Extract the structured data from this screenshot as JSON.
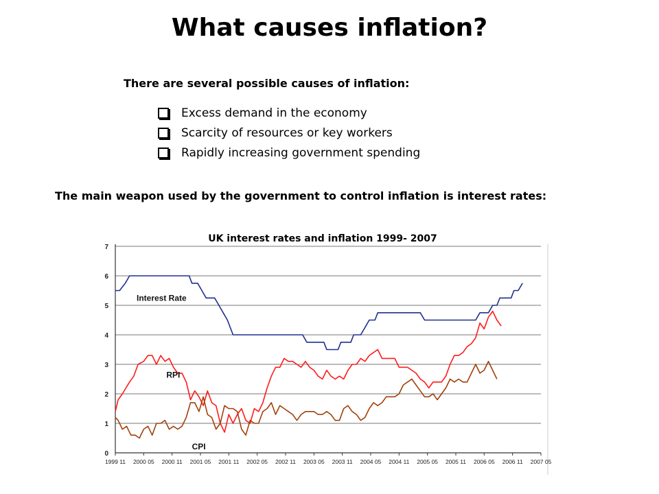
{
  "slide": {
    "title": "What causes inflation?",
    "intro": "There are several possible causes of inflation:",
    "bullets": [
      "Excess demand in the economy",
      "Scarcity of resources or key workers",
      "Rapidly increasing government spending"
    ],
    "weapon_text": "The main weapon used by the government to control inflation is interest rates:"
  },
  "chart_data": {
    "type": "line",
    "title": "UK interest rates and inflation 1999- 2007",
    "ylim": [
      0,
      7
    ],
    "yticks": [
      "0",
      "1",
      "2",
      "3",
      "4",
      "5",
      "6",
      "7"
    ],
    "xticks": [
      "1999 11",
      "2000 05",
      "2000 11",
      "2001 05",
      "2001 11",
      "2002 05",
      "2002 11",
      "2003 05",
      "2003 11",
      "2004 05",
      "2004 11",
      "2005 05",
      "2005 11",
      "2006 05",
      "2006 11",
      "2007 05"
    ],
    "grid": true,
    "colors": {
      "Interest Rate": "#1f2f8f",
      "RPI": "#ff1a1a",
      "CPI": "#a0400a"
    },
    "series": [
      {
        "name": "Interest Rate",
        "points": [
          [
            0,
            5.5
          ],
          [
            0.15,
            5.5
          ],
          [
            0.35,
            5.75
          ],
          [
            0.5,
            6
          ],
          [
            1,
            6
          ],
          [
            2,
            6
          ],
          [
            2.6,
            6
          ],
          [
            2.7,
            5.75
          ],
          [
            2.9,
            5.75
          ],
          [
            3.05,
            5.5
          ],
          [
            3.2,
            5.25
          ],
          [
            3.5,
            5.25
          ],
          [
            3.65,
            5
          ],
          [
            3.8,
            4.75
          ],
          [
            3.95,
            4.5
          ],
          [
            4.05,
            4.25
          ],
          [
            4.15,
            4
          ],
          [
            5,
            4
          ],
          [
            6,
            4
          ],
          [
            6.6,
            4
          ],
          [
            6.75,
            3.75
          ],
          [
            7.05,
            3.75
          ],
          [
            7.35,
            3.75
          ],
          [
            7.45,
            3.5
          ],
          [
            7.85,
            3.5
          ],
          [
            7.95,
            3.75
          ],
          [
            8.3,
            3.75
          ],
          [
            8.4,
            4
          ],
          [
            8.65,
            4
          ],
          [
            8.8,
            4.25
          ],
          [
            8.95,
            4.5
          ],
          [
            9.15,
            4.5
          ],
          [
            9.25,
            4.75
          ],
          [
            10,
            4.75
          ],
          [
            10.75,
            4.75
          ],
          [
            10.9,
            4.5
          ],
          [
            11.5,
            4.5
          ],
          [
            12.5,
            4.5
          ],
          [
            12.7,
            4.5
          ],
          [
            12.85,
            4.75
          ],
          [
            13.15,
            4.75
          ],
          [
            13.3,
            5
          ],
          [
            13.45,
            5
          ],
          [
            13.55,
            5.25
          ],
          [
            13.95,
            5.25
          ],
          [
            14.05,
            5.5
          ],
          [
            14.2,
            5.5
          ],
          [
            14.35,
            5.75
          ]
        ]
      },
      {
        "name": "RPI",
        "points": [
          [
            0,
            1.4
          ],
          [
            0.1,
            1.8
          ],
          [
            0.25,
            2.0
          ],
          [
            0.5,
            2.4
          ],
          [
            0.65,
            2.6
          ],
          [
            0.8,
            3.0
          ],
          [
            1,
            3.1
          ],
          [
            1.15,
            3.3
          ],
          [
            1.3,
            3.3
          ],
          [
            1.45,
            3.0
          ],
          [
            1.6,
            3.3
          ],
          [
            1.75,
            3.1
          ],
          [
            1.9,
            3.2
          ],
          [
            2.05,
            2.9
          ],
          [
            2.2,
            2.7
          ],
          [
            2.35,
            2.7
          ],
          [
            2.5,
            2.4
          ],
          [
            2.65,
            1.8
          ],
          [
            2.8,
            2.1
          ],
          [
            2.95,
            1.9
          ],
          [
            3.1,
            1.6
          ],
          [
            3.25,
            2.1
          ],
          [
            3.4,
            1.7
          ],
          [
            3.55,
            1.6
          ],
          [
            3.7,
            1.0
          ],
          [
            3.85,
            0.7
          ],
          [
            4.0,
            1.3
          ],
          [
            4.15,
            1.0
          ],
          [
            4.3,
            1.3
          ],
          [
            4.45,
            1.5
          ],
          [
            4.6,
            1.1
          ],
          [
            4.75,
            1.0
          ],
          [
            4.9,
            1.5
          ],
          [
            5.05,
            1.4
          ],
          [
            5.2,
            1.7
          ],
          [
            5.35,
            2.2
          ],
          [
            5.5,
            2.6
          ],
          [
            5.65,
            2.9
          ],
          [
            5.8,
            2.9
          ],
          [
            5.95,
            3.2
          ],
          [
            6.1,
            3.1
          ],
          [
            6.25,
            3.1
          ],
          [
            6.4,
            3.0
          ],
          [
            6.55,
            2.9
          ],
          [
            6.7,
            3.1
          ],
          [
            6.85,
            2.9
          ],
          [
            7.0,
            2.8
          ],
          [
            7.15,
            2.6
          ],
          [
            7.3,
            2.5
          ],
          [
            7.45,
            2.8
          ],
          [
            7.6,
            2.6
          ],
          [
            7.75,
            2.5
          ],
          [
            7.9,
            2.6
          ],
          [
            8.05,
            2.5
          ],
          [
            8.2,
            2.8
          ],
          [
            8.35,
            3.0
          ],
          [
            8.5,
            3.0
          ],
          [
            8.65,
            3.2
          ],
          [
            8.8,
            3.1
          ],
          [
            8.95,
            3.3
          ],
          [
            9.1,
            3.4
          ],
          [
            9.25,
            3.5
          ],
          [
            9.4,
            3.2
          ],
          [
            9.55,
            3.2
          ],
          [
            9.7,
            3.2
          ],
          [
            9.85,
            3.2
          ],
          [
            10.0,
            2.9
          ],
          [
            10.15,
            2.9
          ],
          [
            10.3,
            2.9
          ],
          [
            10.45,
            2.8
          ],
          [
            10.6,
            2.7
          ],
          [
            10.75,
            2.5
          ],
          [
            10.9,
            2.4
          ],
          [
            11.05,
            2.2
          ],
          [
            11.2,
            2.4
          ],
          [
            11.35,
            2.4
          ],
          [
            11.5,
            2.4
          ],
          [
            11.65,
            2.6
          ],
          [
            11.8,
            3.0
          ],
          [
            11.95,
            3.3
          ],
          [
            12.1,
            3.3
          ],
          [
            12.25,
            3.4
          ],
          [
            12.4,
            3.6
          ],
          [
            12.55,
            3.7
          ],
          [
            12.7,
            3.9
          ],
          [
            12.85,
            4.4
          ],
          [
            13.0,
            4.2
          ],
          [
            13.15,
            4.6
          ],
          [
            13.3,
            4.8
          ],
          [
            13.45,
            4.5
          ],
          [
            13.6,
            4.3
          ]
        ]
      },
      {
        "name": "CPI",
        "points": [
          [
            0,
            1.2
          ],
          [
            0.1,
            1.1
          ],
          [
            0.25,
            0.8
          ],
          [
            0.4,
            0.9
          ],
          [
            0.55,
            0.6
          ],
          [
            0.7,
            0.6
          ],
          [
            0.85,
            0.5
          ],
          [
            1.0,
            0.8
          ],
          [
            1.15,
            0.9
          ],
          [
            1.3,
            0.6
          ],
          [
            1.45,
            1.0
          ],
          [
            1.6,
            1.0
          ],
          [
            1.75,
            1.1
          ],
          [
            1.9,
            0.8
          ],
          [
            2.05,
            0.9
          ],
          [
            2.2,
            0.8
          ],
          [
            2.35,
            0.9
          ],
          [
            2.5,
            1.2
          ],
          [
            2.65,
            1.7
          ],
          [
            2.8,
            1.7
          ],
          [
            2.95,
            1.4
          ],
          [
            3.1,
            1.9
          ],
          [
            3.25,
            1.3
          ],
          [
            3.4,
            1.2
          ],
          [
            3.55,
            0.8
          ],
          [
            3.7,
            1.0
          ],
          [
            3.85,
            1.6
          ],
          [
            4.0,
            1.5
          ],
          [
            4.15,
            1.5
          ],
          [
            4.3,
            1.4
          ],
          [
            4.45,
            0.8
          ],
          [
            4.6,
            0.6
          ],
          [
            4.75,
            1.1
          ],
          [
            4.9,
            1.0
          ],
          [
            5.05,
            1.0
          ],
          [
            5.2,
            1.4
          ],
          [
            5.35,
            1.5
          ],
          [
            5.5,
            1.7
          ],
          [
            5.65,
            1.3
          ],
          [
            5.8,
            1.6
          ],
          [
            5.95,
            1.5
          ],
          [
            6.1,
            1.4
          ],
          [
            6.25,
            1.3
          ],
          [
            6.4,
            1.1
          ],
          [
            6.55,
            1.3
          ],
          [
            6.7,
            1.4
          ],
          [
            6.85,
            1.4
          ],
          [
            7.0,
            1.4
          ],
          [
            7.15,
            1.3
          ],
          [
            7.3,
            1.3
          ],
          [
            7.45,
            1.4
          ],
          [
            7.6,
            1.3
          ],
          [
            7.75,
            1.1
          ],
          [
            7.9,
            1.1
          ],
          [
            8.05,
            1.5
          ],
          [
            8.2,
            1.6
          ],
          [
            8.35,
            1.4
          ],
          [
            8.5,
            1.3
          ],
          [
            8.65,
            1.1
          ],
          [
            8.8,
            1.2
          ],
          [
            8.95,
            1.5
          ],
          [
            9.1,
            1.7
          ],
          [
            9.25,
            1.6
          ],
          [
            9.4,
            1.7
          ],
          [
            9.55,
            1.9
          ],
          [
            9.7,
            1.9
          ],
          [
            9.85,
            1.9
          ],
          [
            10.0,
            2.0
          ],
          [
            10.15,
            2.3
          ],
          [
            10.3,
            2.4
          ],
          [
            10.45,
            2.5
          ],
          [
            10.6,
            2.3
          ],
          [
            10.75,
            2.1
          ],
          [
            10.9,
            1.9
          ],
          [
            11.05,
            1.9
          ],
          [
            11.2,
            2.0
          ],
          [
            11.35,
            1.8
          ],
          [
            11.5,
            2.0
          ],
          [
            11.65,
            2.2
          ],
          [
            11.8,
            2.5
          ],
          [
            11.95,
            2.4
          ],
          [
            12.1,
            2.5
          ],
          [
            12.25,
            2.4
          ],
          [
            12.4,
            2.4
          ],
          [
            12.55,
            2.7
          ],
          [
            12.7,
            3.0
          ],
          [
            12.85,
            2.7
          ],
          [
            13.0,
            2.8
          ],
          [
            13.15,
            3.1
          ],
          [
            13.3,
            2.8
          ],
          [
            13.45,
            2.5
          ]
        ]
      }
    ],
    "series_labels": {
      "Interest Rate": "Interest Rate",
      "RPI": "RPI",
      "CPI": "CPI"
    }
  }
}
